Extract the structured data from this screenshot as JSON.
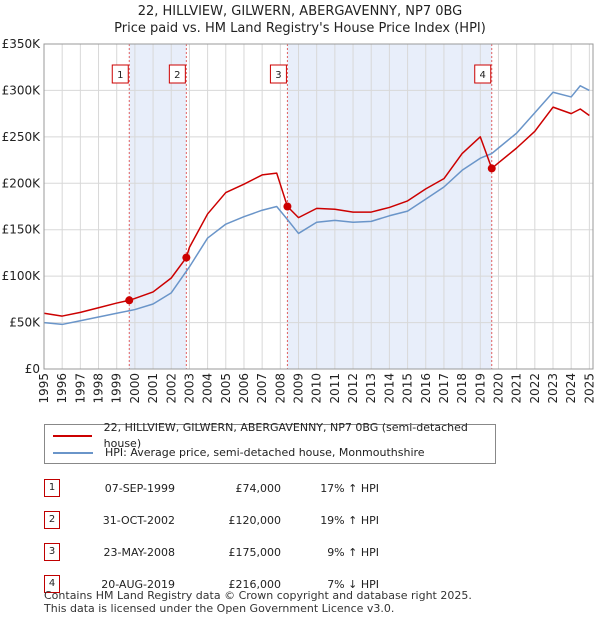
{
  "title_line1": "22, HILLVIEW, GILWERN, ABERGAVENNY, NP7 0BG",
  "title_line2": "Price paid vs. HM Land Registry's House Price Index (HPI)",
  "colors": {
    "property": "#cc0000",
    "hpi": "#6a95c9",
    "shade": "#e8eefa",
    "grid": "#d8d8d8",
    "vline": "#e06060"
  },
  "legend": {
    "property": "22, HILLVIEW, GILWERN, ABERGAVENNY, NP7 0BG (semi-detached house)",
    "hpi": "HPI: Average price, semi-detached house, Monmouthshire"
  },
  "sales": [
    {
      "num": "1",
      "date": "07-SEP-1999",
      "price": "£74,000",
      "hpi": "17% ↑ HPI"
    },
    {
      "num": "2",
      "date": "31-OCT-2002",
      "price": "£120,000",
      "hpi": "19% ↑ HPI"
    },
    {
      "num": "3",
      "date": "23-MAY-2008",
      "price": "£175,000",
      "hpi": "9% ↑ HPI"
    },
    {
      "num": "4",
      "date": "20-AUG-2019",
      "price": "£216,000",
      "hpi": "7% ↓ HPI"
    }
  ],
  "footer": {
    "line1": "Contains HM Land Registry data © Crown copyright and database right 2025.",
    "line2": "This data is licensed under the Open Government Licence v3.0."
  },
  "chart_data": {
    "type": "line",
    "title": "Price paid vs. HM Land Registry's House Price Index (HPI)",
    "xlim": [
      1995,
      2025.2
    ],
    "ylim": [
      0,
      350000
    ],
    "x_ticks": [
      1995,
      1996,
      1997,
      1998,
      1999,
      2000,
      2001,
      2002,
      2003,
      2004,
      2005,
      2006,
      2007,
      2008,
      2009,
      2010,
      2011,
      2012,
      2013,
      2014,
      2015,
      2016,
      2017,
      2018,
      2019,
      2020,
      2021,
      2022,
      2023,
      2024,
      2025
    ],
    "y_ticks": [
      0,
      50000,
      100000,
      150000,
      200000,
      250000,
      300000,
      350000
    ],
    "y_tick_labels": [
      "£0",
      "£50K",
      "£100K",
      "£150K",
      "£200K",
      "£250K",
      "£300K",
      "£350K"
    ],
    "shaded_periods": [
      [
        1999.69,
        2002.83
      ],
      [
        2008.39,
        2019.63
      ]
    ],
    "sale_markers": [
      {
        "label": "1",
        "x": 1999.69,
        "y": 74000
      },
      {
        "label": "2",
        "x": 2002.83,
        "y": 120000
      },
      {
        "label": "3",
        "x": 2008.39,
        "y": 175000
      },
      {
        "label": "4",
        "x": 2019.63,
        "y": 216000
      }
    ],
    "series": [
      {
        "name": "22, HILLVIEW, GILWERN, ABERGAVENNY, NP7 0BG (semi-detached house)",
        "x": [
          1995,
          1996,
          1997,
          1998,
          1999,
          1999.69,
          2000,
          2001,
          2002,
          2002.83,
          2003,
          2004,
          2005,
          2006,
          2007,
          2007.8,
          2008.39,
          2009,
          2010,
          2011,
          2012,
          2013,
          2014,
          2015,
          2016,
          2017,
          2018,
          2019,
          2019.63,
          2020,
          2021,
          2022,
          2023,
          2024,
          2024.5,
          2025
        ],
        "values": [
          60000,
          57000,
          61000,
          66000,
          71000,
          74000,
          76000,
          83000,
          98000,
          120000,
          131000,
          167000,
          190000,
          199000,
          209000,
          211000,
          175000,
          163000,
          173000,
          172000,
          169000,
          169000,
          174000,
          181000,
          194000,
          205000,
          232000,
          250000,
          216000,
          222000,
          238000,
          256000,
          282000,
          275000,
          280000,
          273000
        ]
      },
      {
        "name": "HPI: Average price, semi-detached house, Monmouthshire",
        "x": [
          1995,
          1996,
          1997,
          1998,
          1999,
          2000,
          2001,
          2002,
          2003,
          2004,
          2005,
          2006,
          2007,
          2007.8,
          2008.39,
          2009,
          2010,
          2011,
          2012,
          2013,
          2014,
          2015,
          2016,
          2017,
          2018,
          2019,
          2019.63,
          2020,
          2021,
          2022,
          2023,
          2024,
          2024.5,
          2025
        ],
        "values": [
          50000,
          48000,
          52000,
          56000,
          60000,
          64000,
          70000,
          82000,
          110000,
          141000,
          156000,
          164000,
          171000,
          175000,
          161000,
          146000,
          158000,
          160000,
          158000,
          159000,
          165000,
          170000,
          183000,
          196000,
          214000,
          227000,
          232000,
          238000,
          254000,
          276000,
          298000,
          293000,
          305000,
          300000
        ]
      }
    ]
  }
}
